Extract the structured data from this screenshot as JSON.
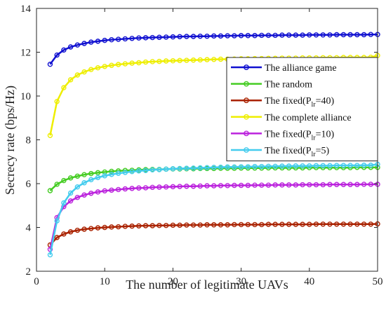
{
  "chart_data": {
    "type": "line",
    "xlabel": "The number of legitimate UAVs",
    "ylabel": "Secrecy rate (bps/Hz)",
    "xlim": [
      0,
      50
    ],
    "ylim": [
      2,
      14
    ],
    "xticks": [
      0,
      10,
      20,
      30,
      40,
      50
    ],
    "yticks": [
      2,
      4,
      6,
      8,
      10,
      12,
      14
    ],
    "grid": false,
    "legend_position": "top-right",
    "x": [
      2,
      3,
      4,
      5,
      6,
      7,
      8,
      9,
      10,
      11,
      12,
      13,
      14,
      15,
      16,
      17,
      18,
      19,
      20,
      21,
      22,
      23,
      24,
      25,
      26,
      27,
      28,
      29,
      30,
      31,
      32,
      33,
      34,
      35,
      36,
      37,
      38,
      39,
      40,
      41,
      42,
      43,
      44,
      45,
      46,
      47,
      48,
      49,
      50
    ],
    "series": [
      {
        "name": "The alliance game",
        "legend_main": "The alliance game",
        "legend_sub": "",
        "legend_tail": "",
        "color": "#1010d0",
        "values": [
          11.45,
          11.87,
          12.1,
          12.24,
          12.33,
          12.4,
          12.46,
          12.5,
          12.54,
          12.57,
          12.59,
          12.61,
          12.63,
          12.65,
          12.66,
          12.67,
          12.68,
          12.69,
          12.7,
          12.71,
          12.72,
          12.72,
          12.73,
          12.73,
          12.74,
          12.74,
          12.75,
          12.75,
          12.76,
          12.76,
          12.76,
          12.77,
          12.77,
          12.77,
          12.78,
          12.78,
          12.78,
          12.78,
          12.79,
          12.79,
          12.79,
          12.79,
          12.8,
          12.8,
          12.8,
          12.8,
          12.8,
          12.81,
          12.81
        ]
      },
      {
        "name": "The random",
        "legend_main": "The random",
        "legend_sub": "",
        "legend_tail": "",
        "color": "#44cc22",
        "values": [
          5.68,
          5.97,
          6.14,
          6.26,
          6.34,
          6.41,
          6.46,
          6.5,
          6.53,
          6.56,
          6.58,
          6.6,
          6.61,
          6.63,
          6.64,
          6.65,
          6.65,
          6.66,
          6.67,
          6.67,
          6.68,
          6.68,
          6.69,
          6.69,
          6.69,
          6.7,
          6.7,
          6.7,
          6.71,
          6.71,
          6.71,
          6.71,
          6.72,
          6.72,
          6.72,
          6.72,
          6.72,
          6.72,
          6.73,
          6.73,
          6.73,
          6.73,
          6.73,
          6.73,
          6.73,
          6.74,
          6.74,
          6.74,
          6.74
        ]
      },
      {
        "name": "The fixed(Plr=40)",
        "legend_main": "The fixed(P",
        "legend_sub": "lr",
        "legend_tail": "=40)",
        "color": "#aa2200",
        "values": [
          3.2,
          3.54,
          3.7,
          3.8,
          3.87,
          3.92,
          3.95,
          3.98,
          4.0,
          4.02,
          4.03,
          4.05,
          4.06,
          4.07,
          4.08,
          4.08,
          4.09,
          4.09,
          4.1,
          4.1,
          4.11,
          4.11,
          4.11,
          4.12,
          4.12,
          4.12,
          4.12,
          4.13,
          4.13,
          4.13,
          4.13,
          4.13,
          4.14,
          4.14,
          4.14,
          4.14,
          4.14,
          4.14,
          4.14,
          4.15,
          4.15,
          4.15,
          4.15,
          4.15,
          4.15,
          4.15,
          4.15,
          4.15,
          4.16
        ]
      },
      {
        "name": "The complete alliance",
        "legend_main": "The complete alliance",
        "legend_sub": "",
        "legend_tail": "",
        "color": "#eeee00",
        "values": [
          8.2,
          9.75,
          10.38,
          10.74,
          10.96,
          11.1,
          11.21,
          11.29,
          11.35,
          11.4,
          11.44,
          11.47,
          11.5,
          11.52,
          11.55,
          11.57,
          11.58,
          11.6,
          11.61,
          11.62,
          11.63,
          11.64,
          11.65,
          11.66,
          11.67,
          11.68,
          11.68,
          11.69,
          11.7,
          11.7,
          11.71,
          11.71,
          11.72,
          11.72,
          11.73,
          11.73,
          11.73,
          11.74,
          11.74,
          11.74,
          11.75,
          11.75,
          11.75,
          11.76,
          11.76,
          11.76,
          11.76,
          11.77,
          11.85
        ]
      },
      {
        "name": "The fixed(Plr=10)",
        "legend_main": "The fixed(P",
        "legend_sub": "lr",
        "legend_tail": "=10)",
        "color": "#bb22dd",
        "values": [
          3.0,
          4.45,
          4.95,
          5.21,
          5.37,
          5.48,
          5.56,
          5.62,
          5.67,
          5.7,
          5.73,
          5.76,
          5.78,
          5.8,
          5.81,
          5.83,
          5.84,
          5.85,
          5.86,
          5.87,
          5.88,
          5.88,
          5.89,
          5.9,
          5.9,
          5.91,
          5.91,
          5.92,
          5.92,
          5.92,
          5.93,
          5.93,
          5.93,
          5.94,
          5.94,
          5.94,
          5.94,
          5.95,
          5.95,
          5.95,
          5.95,
          5.96,
          5.96,
          5.96,
          5.96,
          5.96,
          5.97,
          5.97,
          5.97
        ]
      },
      {
        "name": "The fixed(Plr=5)",
        "legend_main": "The fixed(P",
        "legend_sub": "lr",
        "legend_tail": "=5)",
        "color": "#44ccee",
        "values": [
          2.75,
          4.3,
          5.12,
          5.57,
          5.85,
          6.04,
          6.18,
          6.28,
          6.36,
          6.42,
          6.47,
          6.51,
          6.55,
          6.58,
          6.6,
          6.63,
          6.64,
          6.66,
          6.68,
          6.69,
          6.7,
          6.71,
          6.72,
          6.73,
          6.74,
          6.75,
          6.76,
          6.76,
          6.77,
          6.77,
          6.78,
          6.78,
          6.79,
          6.79,
          6.8,
          6.8,
          6.81,
          6.81,
          6.81,
          6.82,
          6.82,
          6.82,
          6.83,
          6.83,
          6.83,
          6.83,
          6.84,
          6.84,
          6.88
        ]
      }
    ]
  }
}
